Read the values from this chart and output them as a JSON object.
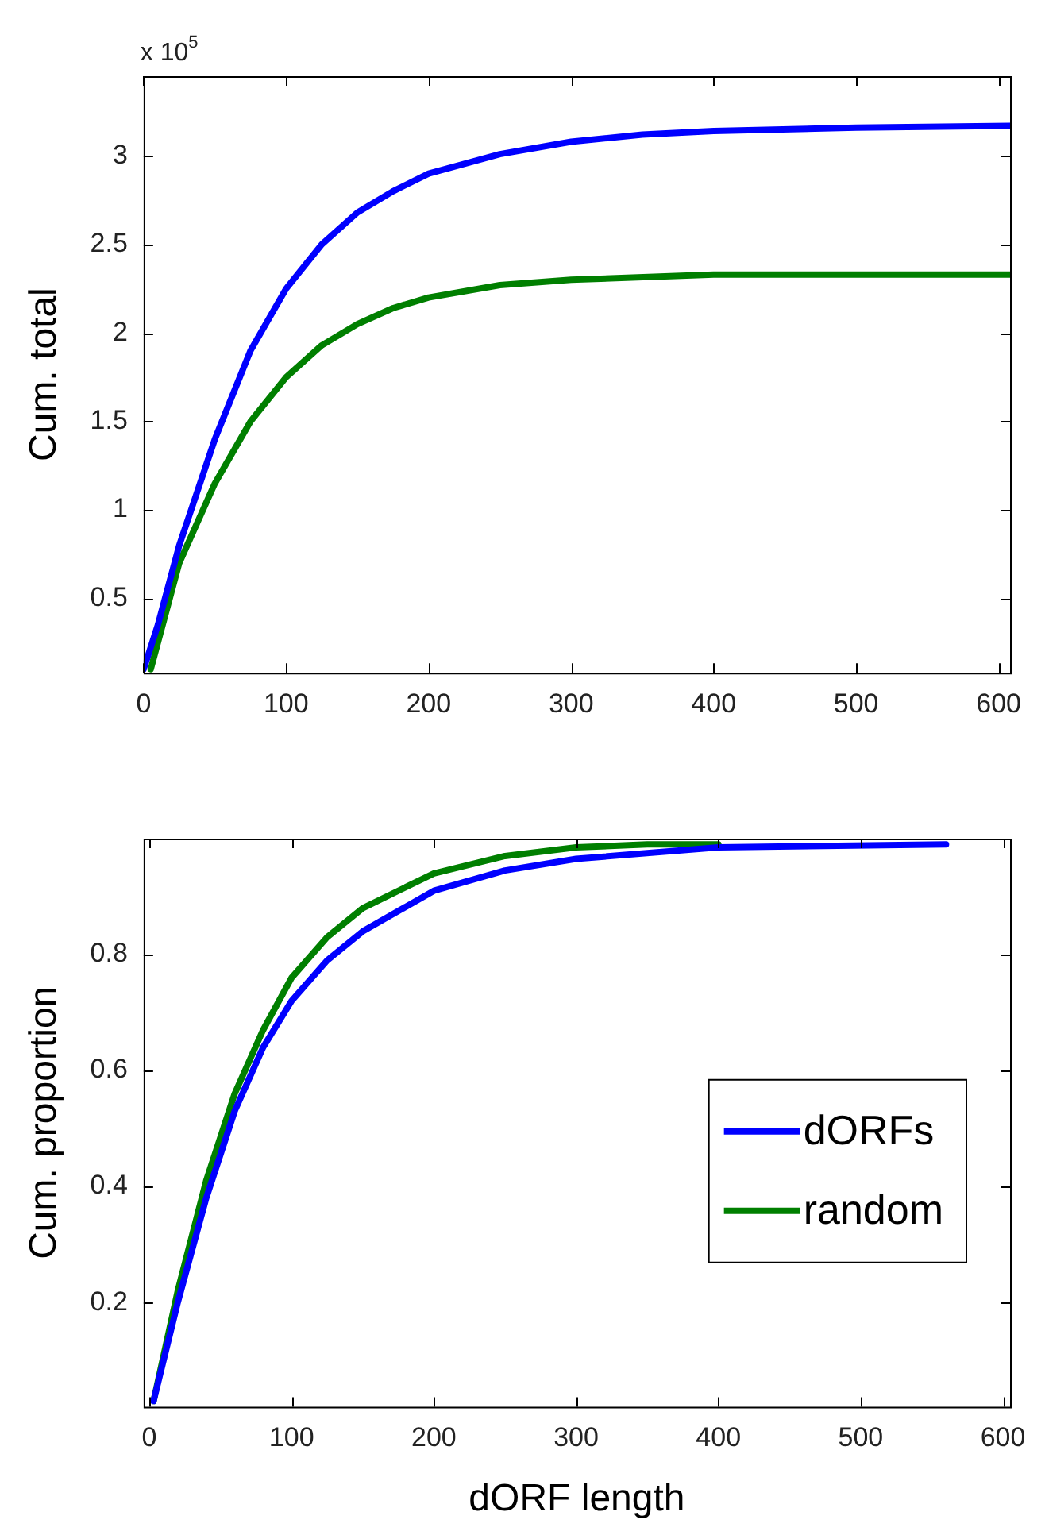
{
  "chart_data": [
    {
      "type": "line",
      "ylabel": "Cum. total",
      "annotations": [
        "x 10$^{5}$"
      ],
      "xlim": [
        0,
        608
      ],
      "xticks": [
        0,
        100,
        200,
        300,
        400,
        500,
        600
      ],
      "ylim": [
        0.08,
        3.45
      ],
      "yticks": [
        0.5,
        1,
        1.5,
        2,
        2.5,
        3
      ],
      "grid": false,
      "legend": false,
      "marker": "none",
      "series": [
        {
          "color": "#0000ff",
          "x": [
            0,
            10,
            25,
            50,
            75,
            100,
            125,
            150,
            175,
            200,
            250,
            300,
            350,
            400,
            500,
            608
          ],
          "values": [
            0.1,
            0.35,
            0.8,
            1.4,
            1.9,
            2.25,
            2.5,
            2.68,
            2.8,
            2.9,
            3.01,
            3.08,
            3.12,
            3.14,
            3.16,
            3.17
          ]
        },
        {
          "color": "#007f00",
          "x": [
            5,
            25,
            50,
            75,
            100,
            125,
            150,
            175,
            200,
            250,
            300,
            400,
            608
          ],
          "values": [
            0.1,
            0.7,
            1.15,
            1.5,
            1.75,
            1.93,
            2.05,
            2.14,
            2.2,
            2.27,
            2.3,
            2.33,
            2.33
          ]
        }
      ]
    },
    {
      "type": "line",
      "xlabel": "dORF length",
      "ylabel": "Cum. proportion",
      "xlim": [
        -4,
        605
      ],
      "xticks": [
        0,
        100,
        200,
        300,
        400,
        500,
        600
      ],
      "ylim": [
        0.02,
        1.0
      ],
      "yticks": [
        0.2,
        0.4,
        0.6,
        0.8
      ],
      "grid": false,
      "legend": "right",
      "marker": "none",
      "series": [
        {
          "name": "dORFs",
          "color": "#0000ff",
          "x": [
            3,
            20,
            40,
            60,
            80,
            100,
            125,
            150,
            200,
            250,
            300,
            400,
            560
          ],
          "values": [
            0.03,
            0.2,
            0.38,
            0.53,
            0.64,
            0.72,
            0.79,
            0.84,
            0.91,
            0.945,
            0.965,
            0.985,
            0.99
          ]
        },
        {
          "name": "random",
          "color": "#007f00",
          "x": [
            3,
            20,
            40,
            60,
            80,
            100,
            125,
            150,
            200,
            250,
            300,
            350,
            400
          ],
          "values": [
            0.03,
            0.22,
            0.41,
            0.56,
            0.67,
            0.76,
            0.83,
            0.88,
            0.94,
            0.97,
            0.985,
            0.99,
            0.99
          ]
        }
      ]
    }
  ]
}
